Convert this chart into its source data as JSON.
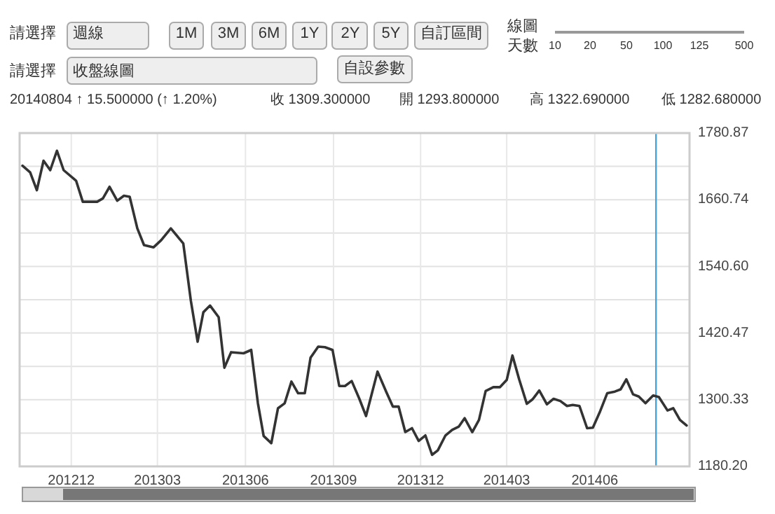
{
  "chart_data": {
    "type": "line",
    "annotations": [
      "請選擇",
      "週線",
      "1M",
      "3M",
      "6M",
      "1Y",
      "2Y",
      "5Y",
      "自訂區間",
      "線圖",
      "天數",
      "10",
      "20",
      "50",
      "100",
      "125",
      "500",
      "請選擇",
      "收盤線圖",
      "自設參數",
      "20140804 ↑ 15.500000 (↑ 1.20%)",
      "收 1309.300000",
      "開 1293.800000",
      "高 1322.690000",
      "低 1282.680000"
    ],
    "xlim": [
      "2012-10-08",
      "2014-09-08"
    ],
    "xticks": [
      {
        "value": "2012-12-01",
        "label": "201212"
      },
      {
        "value": "2013-03-01",
        "label": "201303"
      },
      {
        "value": "2013-06-01",
        "label": "201306"
      },
      {
        "value": "2013-09-01",
        "label": "201309"
      },
      {
        "value": "2013-12-01",
        "label": "201312"
      },
      {
        "value": "2014-03-01",
        "label": "201403"
      },
      {
        "value": "2014-06-01",
        "label": "201406"
      }
    ],
    "ylim": [
      1180.2,
      1780.87
    ],
    "yticks": [
      {
        "value": 1180.2,
        "label": "1180.20"
      },
      {
        "value": 1240.27,
        "label": null
      },
      {
        "value": 1300.33,
        "label": "1300.33"
      },
      {
        "value": 1360.4,
        "label": null
      },
      {
        "value": 1420.47,
        "label": "1420.47"
      },
      {
        "value": 1480.54,
        "label": null
      },
      {
        "value": 1540.6,
        "label": "1540.60"
      },
      {
        "value": 1600.67,
        "label": null
      },
      {
        "value": 1660.74,
        "label": "1660.74"
      },
      {
        "value": 1720.8,
        "label": null
      },
      {
        "value": 1780.87,
        "label": "1780.87"
      }
    ],
    "grid": true,
    "ref_lines": [
      {
        "axis": "x",
        "value": "2014-08-04",
        "color": "#4aa3d6"
      }
    ],
    "series": [
      {
        "color": "#333333",
        "x": [
          "2012-10-11",
          "2012-10-19",
          "2012-10-26",
          "2012-11-02",
          "2012-11-09",
          "2012-11-16",
          "2012-11-23",
          "2012-12-06",
          "2012-12-13",
          "2012-12-28",
          "2013-01-03",
          "2013-01-10",
          "2013-01-18",
          "2013-01-25",
          "2013-01-31",
          "2013-02-08",
          "2013-02-15",
          "2013-02-25",
          "2013-03-05",
          "2013-03-15",
          "2013-03-28",
          "2013-04-05",
          "2013-04-12",
          "2013-04-18",
          "2013-04-25",
          "2013-05-04",
          "2013-05-10",
          "2013-05-17",
          "2013-05-30",
          "2013-06-07",
          "2013-06-14",
          "2013-06-20",
          "2013-06-28",
          "2013-07-05",
          "2013-07-12",
          "2013-07-19",
          "2013-07-26",
          "2013-08-02",
          "2013-08-08",
          "2013-08-16",
          "2013-08-23",
          "2013-08-31",
          "2013-09-07",
          "2013-09-13",
          "2013-09-20",
          "2013-09-28",
          "2013-10-05",
          "2013-10-17",
          "2013-10-26",
          "2013-11-02",
          "2013-11-08",
          "2013-11-15",
          "2013-11-22",
          "2013-11-29",
          "2013-12-06",
          "2013-12-13",
          "2013-12-19",
          "2013-12-27",
          "2014-01-03",
          "2014-01-10",
          "2014-01-16",
          "2014-01-24",
          "2014-01-31",
          "2014-02-07",
          "2014-02-15",
          "2014-02-22",
          "2014-03-01",
          "2014-03-07",
          "2014-03-14",
          "2014-03-22",
          "2014-03-28",
          "2014-04-04",
          "2014-04-12",
          "2014-04-19",
          "2014-04-26",
          "2014-05-03",
          "2014-05-09",
          "2014-05-16",
          "2014-05-24",
          "2014-05-30",
          "2014-06-06",
          "2014-06-14",
          "2014-06-22",
          "2014-06-28",
          "2014-07-04",
          "2014-07-11",
          "2014-07-17",
          "2014-07-24",
          "2014-08-01",
          "2014-08-07",
          "2014-08-16",
          "2014-08-22",
          "2014-08-29",
          "2014-09-05"
        ],
        "values": [
          1722,
          1710,
          1678,
          1731,
          1714,
          1749,
          1714,
          1695,
          1657,
          1657,
          1663,
          1684,
          1659,
          1668,
          1666,
          1609,
          1579,
          1575,
          1588,
          1609,
          1582,
          1478,
          1405,
          1458,
          1470,
          1449,
          1358,
          1386,
          1384,
          1390,
          1294,
          1235,
          1222,
          1285,
          1294,
          1333,
          1312,
          1312,
          1376,
          1396,
          1395,
          1390,
          1325,
          1325,
          1334,
          1302,
          1271,
          1351,
          1315,
          1288,
          1288,
          1242,
          1249,
          1226,
          1236,
          1201,
          1209,
          1236,
          1246,
          1252,
          1267,
          1242,
          1264,
          1316,
          1323,
          1323,
          1336,
          1380,
          1337,
          1293,
          1301,
          1317,
          1292,
          1302,
          1298,
          1289,
          1291,
          1289,
          1249,
          1250,
          1277,
          1312,
          1315,
          1319,
          1337,
          1310,
          1306,
          1294,
          1308,
          1305,
          1281,
          1285,
          1264,
          1254
        ]
      }
    ]
  }
}
